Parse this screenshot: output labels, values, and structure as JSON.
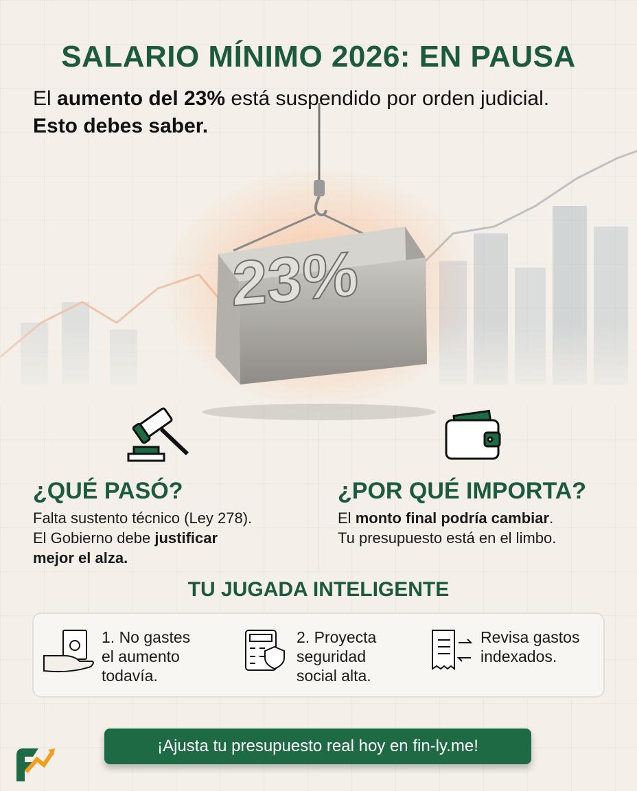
{
  "header": {
    "title": "SALARIO MÍNIMO 2026: EN PAUSA",
    "subtitle": [
      [
        {
          "text": "El "
        },
        {
          "text": "aumento del 23%",
          "bold": true
        },
        {
          "text": " está suspendido por orden judicial."
        }
      ],
      [
        {
          "text": "Esto debes saber.",
          "bold": true
        }
      ]
    ]
  },
  "hero": {
    "block_label": "23%"
  },
  "sections": [
    {
      "title": "¿QUÉ PASÓ?",
      "body": [
        [
          {
            "text": "Falta sustento técnico (Ley 278)."
          }
        ],
        [
          {
            "text": "El Gobierno debe "
          },
          {
            "text": "justificar",
            "bold": true
          }
        ],
        [
          {
            "text": "mejor el alza.",
            "bold": true
          }
        ]
      ]
    },
    {
      "title": "¿POR QUÉ IMPORTA?",
      "body": [
        [
          {
            "text": "El "
          },
          {
            "text": "monto final podría cambiar",
            "bold": true
          },
          {
            "text": "."
          }
        ],
        [
          {
            "text": "Tu presupuesto está en el limbo."
          }
        ]
      ]
    }
  ],
  "tips": {
    "title": "TU JUGADA INTELIGENTE",
    "items": [
      [
        [
          {
            "text": "1. No gastes"
          }
        ],
        [
          {
            "text": "el aumento"
          }
        ],
        [
          {
            "text": "todavía."
          }
        ]
      ],
      [
        [
          {
            "text": "2. Proyecta"
          }
        ],
        [
          {
            "text": "seguridad"
          }
        ],
        [
          {
            "text": "social alta."
          }
        ]
      ],
      [
        [
          {
            "text": "Revisa gastos"
          }
        ],
        [
          {
            "text": "indexados."
          }
        ]
      ]
    ]
  },
  "cta": {
    "label": "¡Ajusta tu presupuesto real hoy en fin-ly.me!"
  }
}
